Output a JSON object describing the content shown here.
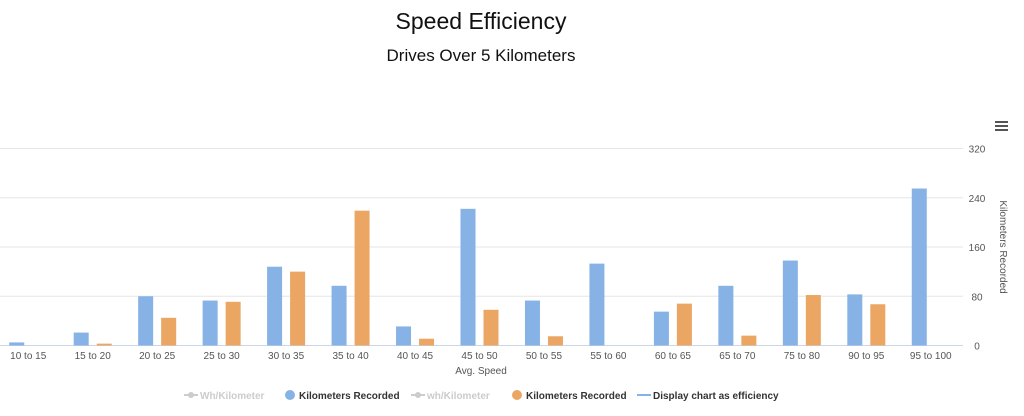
{
  "chart_data": {
    "type": "bar",
    "title": "Speed Efficiency",
    "subtitle": "Drives Over 5 Kilometers",
    "xlabel": "Avg. Speed",
    "ylabel": "Kilometers Recorded",
    "ylim": [
      0,
      320
    ],
    "yticks": [
      "0",
      "80",
      "160",
      "240",
      "320"
    ],
    "yaxis_position": "right",
    "grid": true,
    "legend_position": "bottom",
    "categories": [
      "10 to 15",
      "15 to 20",
      "20 to 25",
      "25 to 30",
      "30 to 35",
      "35 to 40",
      "40 to 45",
      "45 to 50",
      "50 to 55",
      "55 to 60",
      "60 to 65",
      "65 to 70",
      "75 to 80",
      "90 to 95",
      "95 to 100"
    ],
    "series": [
      {
        "name": "Kilometers Recorded",
        "color": "#86b2e6",
        "values": [
          5,
          21,
          80,
          73,
          128,
          97,
          31,
          222,
          73,
          133,
          55,
          97,
          138,
          83,
          255
        ]
      },
      {
        "name": "Kilometers Recorded",
        "color": "#eba664",
        "values": [
          0,
          3,
          45,
          71,
          120,
          219,
          11,
          58,
          15,
          0,
          68,
          16,
          82,
          67,
          0
        ]
      }
    ],
    "legend": [
      {
        "label": "Wh/Kilometer",
        "type": "line-marker",
        "active": false
      },
      {
        "label": "Kilometers Recorded",
        "type": "dot",
        "color": "#86b2e6",
        "active": true
      },
      {
        "label": "wh/Kilometer",
        "type": "line-marker",
        "active": false
      },
      {
        "label": "Kilometers Recorded",
        "type": "dot",
        "color": "#eba664",
        "active": true
      },
      {
        "label": "Display chart as efficiency",
        "type": "line",
        "color": "#86b2e6",
        "active": true
      }
    ]
  },
  "menu_icon": "hamburger-menu-icon"
}
